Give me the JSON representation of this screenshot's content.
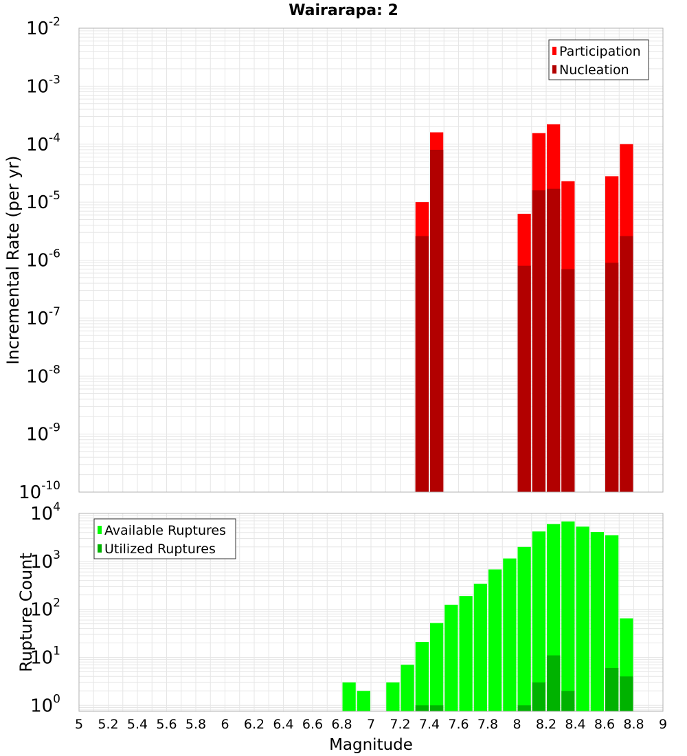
{
  "title": "Wairarapa: 2",
  "chart_data": [
    {
      "type": "bar",
      "panel": "top",
      "title": "Wairarapa: 2",
      "xlabel": "",
      "ylabel": "Incremental Rate (per yr)",
      "yscale": "log",
      "xlim": [
        5,
        9
      ],
      "ylim": [
        1e-10,
        0.01
      ],
      "ytick_exponents": [
        -2,
        -3,
        -4,
        -5,
        -6,
        -7,
        -8,
        -9,
        -10
      ],
      "legend_position": "top-right",
      "bin_width": 0.1,
      "series": [
        {
          "name": "Participation",
          "color": "#ff0000",
          "x": [
            7.35,
            7.45,
            8.05,
            8.15,
            8.25,
            8.35,
            8.65,
            8.75
          ],
          "values": [
            1e-05,
            0.00016,
            6.3e-06,
            0.000155,
            0.00022,
            2.3e-05,
            2.8e-05,
            0.0001
          ]
        },
        {
          "name": "Nucleation",
          "color": "#b20000",
          "x": [
            7.35,
            7.45,
            8.05,
            8.15,
            8.25,
            8.35,
            8.65,
            8.75
          ],
          "values": [
            2.6e-06,
            8e-05,
            8e-07,
            1.6e-05,
            1.7e-05,
            7e-07,
            9e-07,
            2.6e-06
          ]
        }
      ]
    },
    {
      "type": "bar",
      "panel": "bottom",
      "xlabel": "Magnitude",
      "ylabel": "Rupture Count",
      "yscale": "log",
      "xlim": [
        5,
        9
      ],
      "ylim": [
        0.75,
        10000
      ],
      "ytick_exponents": [
        4,
        3,
        2,
        1,
        0
      ],
      "xticks": [
        "5",
        "5.2",
        "5.4",
        "5.6",
        "5.8",
        "6",
        "6.2",
        "6.4",
        "6.6",
        "6.8",
        "7",
        "7.2",
        "7.4",
        "7.6",
        "7.8",
        "8",
        "8.2",
        "8.4",
        "8.6",
        "8.8",
        "9"
      ],
      "legend_position": "top-left",
      "bin_width": 0.1,
      "series": [
        {
          "name": "Available Ruptures",
          "color": "#00ff00",
          "x": [
            6.85,
            6.95,
            7.15,
            7.25,
            7.35,
            7.45,
            7.55,
            7.65,
            7.75,
            7.85,
            7.95,
            8.05,
            8.15,
            8.25,
            8.35,
            8.45,
            8.55,
            8.65,
            8.75
          ],
          "values": [
            3,
            2,
            3,
            7,
            21,
            52,
            125,
            190,
            340,
            680,
            1150,
            2000,
            4200,
            6000,
            6800,
            5300,
            4100,
            3500,
            65
          ]
        },
        {
          "name": "Utilized Ruptures",
          "color": "#00b200",
          "x": [
            7.35,
            7.45,
            8.05,
            8.15,
            8.25,
            8.35,
            8.65,
            8.75
          ],
          "values": [
            1,
            1,
            1,
            3,
            11,
            2,
            6,
            4
          ]
        }
      ]
    }
  ]
}
